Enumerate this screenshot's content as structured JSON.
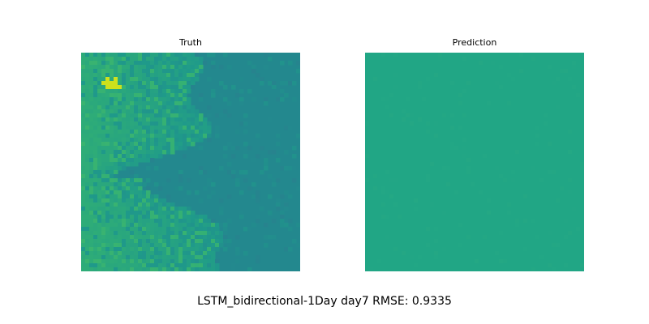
{
  "chart_data": [
    {
      "type": "heatmap",
      "title": "Truth",
      "grid": false,
      "axes_visible": false,
      "colormap": "viridis",
      "colors": {
        "base": "#23888e",
        "mid": "#1f9a8a",
        "green": "#2eac78",
        "light_green": "#3bb56f",
        "yellow": "#cde11d"
      }
    },
    {
      "type": "heatmap",
      "title": "Prediction",
      "grid": false,
      "axes_visible": false,
      "colormap": "viridis",
      "colors": {
        "base": "#21a685"
      }
    }
  ],
  "caption": "LSTM_bidirectional-1Day day7 RMSE: 0.9335"
}
